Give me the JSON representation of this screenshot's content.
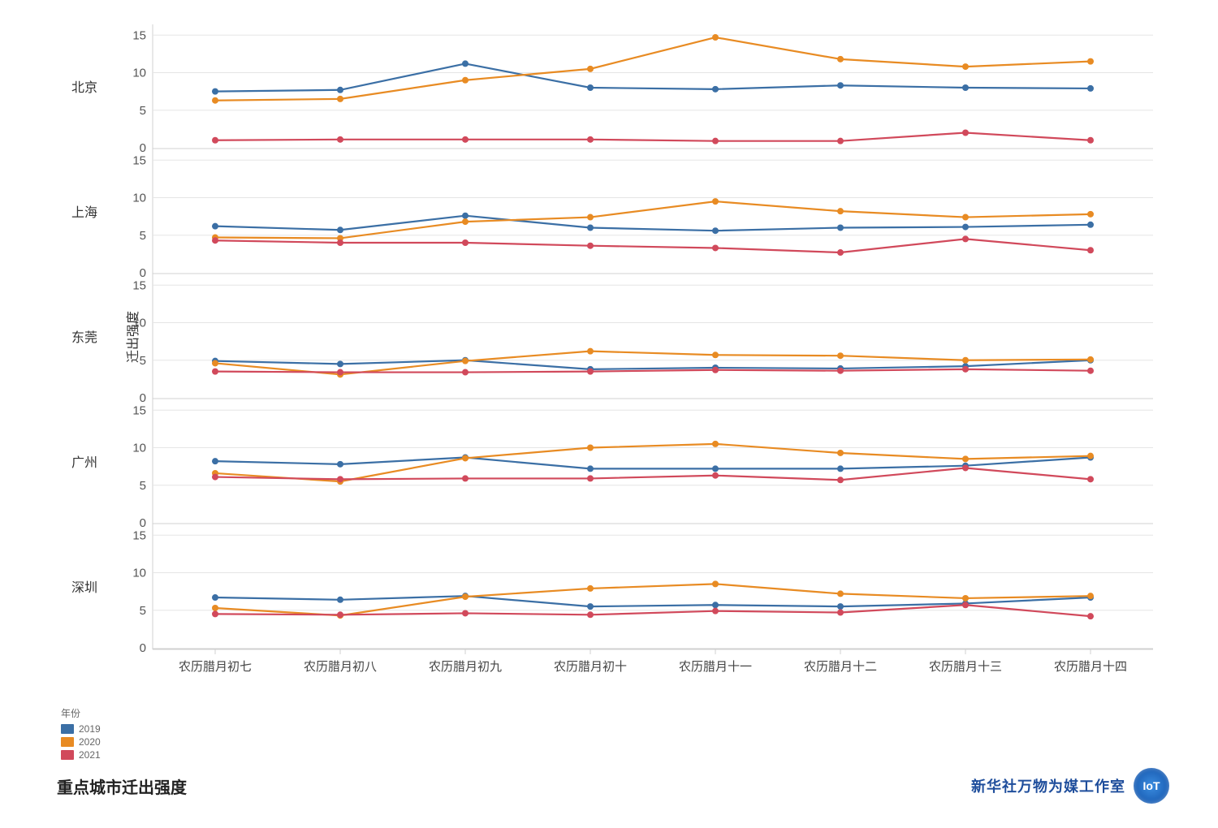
{
  "chart": {
    "type": "line",
    "yaxis_title": "迁出强度",
    "x_labels": [
      "农历腊月初七",
      "农历腊月初八",
      "农历腊月初九",
      "农历腊月初十",
      "农历腊月十一",
      "农历腊月十二",
      "农历腊月十三",
      "农历腊月十四"
    ],
    "y_ticks": [
      0,
      5,
      10,
      15
    ],
    "ylim": [
      0,
      16
    ],
    "label_fontsize": 16,
    "tick_fontsize": 15,
    "facet_fontsize": 16,
    "background_color": "#ffffff",
    "grid_color": "#e5e5e5",
    "axis_color": "#d0d0d0",
    "line_width": 2.2,
    "marker_radius": 4,
    "facets": [
      "北京",
      "上海",
      "东莞",
      "广州",
      "深圳"
    ],
    "data": {
      "北京": {
        "2019": [
          7.5,
          7.7,
          11.2,
          8.0,
          7.8,
          8.3,
          8.0,
          7.9
        ],
        "2020": [
          6.3,
          6.5,
          9.0,
          10.5,
          14.7,
          11.8,
          10.8,
          11.5
        ],
        "2021": [
          1.0,
          1.1,
          1.1,
          1.1,
          0.9,
          0.9,
          2.0,
          1.0
        ]
      },
      "上海": {
        "2019": [
          6.2,
          5.7,
          7.6,
          6.0,
          5.6,
          6.0,
          6.1,
          6.4
        ],
        "2020": [
          4.7,
          4.6,
          6.8,
          7.4,
          9.5,
          8.2,
          7.4,
          7.8
        ],
        "2021": [
          4.3,
          4.0,
          4.0,
          3.6,
          3.3,
          2.7,
          4.5,
          3.0
        ]
      },
      "东莞": {
        "2019": [
          4.9,
          4.5,
          5.0,
          3.8,
          4.0,
          3.9,
          4.2,
          5.0
        ],
        "2020": [
          4.6,
          3.1,
          4.9,
          6.2,
          5.7,
          5.6,
          5.0,
          5.1
        ],
        "2021": [
          3.5,
          3.4,
          3.4,
          3.5,
          3.7,
          3.6,
          3.8,
          3.6
        ]
      },
      "广州": {
        "2019": [
          8.2,
          7.8,
          8.7,
          7.2,
          7.2,
          7.2,
          7.6,
          8.7
        ],
        "2020": [
          6.6,
          5.5,
          8.6,
          10.0,
          10.5,
          9.3,
          8.5,
          8.9
        ],
        "2021": [
          6.1,
          5.8,
          5.9,
          5.9,
          6.3,
          5.7,
          7.3,
          5.8
        ]
      },
      "深圳": {
        "2019": [
          6.7,
          6.4,
          6.9,
          5.5,
          5.7,
          5.5,
          5.9,
          6.7
        ],
        "2020": [
          5.3,
          4.3,
          6.8,
          7.9,
          8.5,
          7.2,
          6.6,
          6.9
        ],
        "2021": [
          4.5,
          4.4,
          4.6,
          4.4,
          4.9,
          4.7,
          5.7,
          4.2
        ]
      }
    }
  },
  "legend": {
    "title": "年份",
    "items": [
      {
        "label": "2019",
        "color": "#3b6fa5"
      },
      {
        "label": "2020",
        "color": "#e88b23"
      },
      {
        "label": "2021",
        "color": "#d1495b"
      }
    ]
  },
  "footer": {
    "title": "重点城市迁出强度",
    "source": "新华社万物为媒工作室",
    "badge": "IoT"
  },
  "colors": {
    "2019": "#3b6fa5",
    "2020": "#e88b23",
    "2021": "#d1495b"
  }
}
